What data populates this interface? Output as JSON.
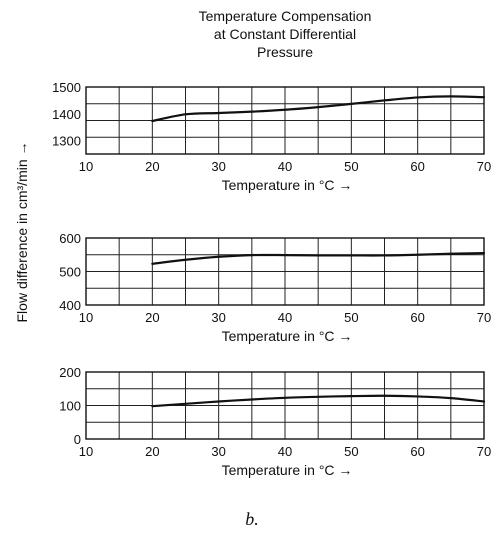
{
  "title_lines": [
    "Temperature Compensation",
    "at Constant Differential",
    "Pressure"
  ],
  "ylabel": "Flow difference in cm³/min →",
  "caption": "b.",
  "chart_data": [
    {
      "type": "line",
      "xlabel": "Temperature in °C →",
      "xlim": [
        10,
        70
      ],
      "ylim": [
        1250,
        1500
      ],
      "x_ticks": [
        "10",
        "20",
        "30",
        "40",
        "50",
        "60",
        "70"
      ],
      "y_ticks": [
        "1300",
        "1400",
        "1500"
      ],
      "grid": true,
      "series": [
        {
          "x": [
            20,
            25,
            30,
            35,
            40,
            45,
            50,
            55,
            60,
            65,
            70
          ],
          "y": [
            1373,
            1398,
            1403,
            1408,
            1415,
            1425,
            1437,
            1450,
            1461,
            1465,
            1462
          ]
        }
      ]
    },
    {
      "type": "line",
      "xlabel": "Temperature in °C →",
      "xlim": [
        10,
        70
      ],
      "ylim": [
        400,
        600
      ],
      "x_ticks": [
        "10",
        "20",
        "30",
        "40",
        "50",
        "60",
        "70"
      ],
      "y_ticks": [
        "400",
        "500",
        "600"
      ],
      "grid": true,
      "series": [
        {
          "x": [
            20,
            25,
            30,
            35,
            40,
            45,
            50,
            55,
            60,
            65,
            70
          ],
          "y": [
            523,
            535,
            544,
            549,
            549,
            548,
            548,
            548,
            550,
            553,
            555
          ]
        }
      ]
    },
    {
      "type": "line",
      "xlabel": "Temperature in °C →",
      "xlim": [
        10,
        70
      ],
      "ylim": [
        0,
        200
      ],
      "x_ticks": [
        "10",
        "20",
        "30",
        "40",
        "50",
        "60",
        "70"
      ],
      "y_ticks": [
        "0",
        "100",
        "200"
      ],
      "grid": true,
      "series": [
        {
          "x": [
            20,
            25,
            30,
            35,
            40,
            45,
            50,
            55,
            60,
            65,
            70
          ],
          "y": [
            98,
            105,
            112,
            118,
            123,
            126,
            128,
            129,
            127,
            122,
            112
          ]
        }
      ]
    }
  ]
}
